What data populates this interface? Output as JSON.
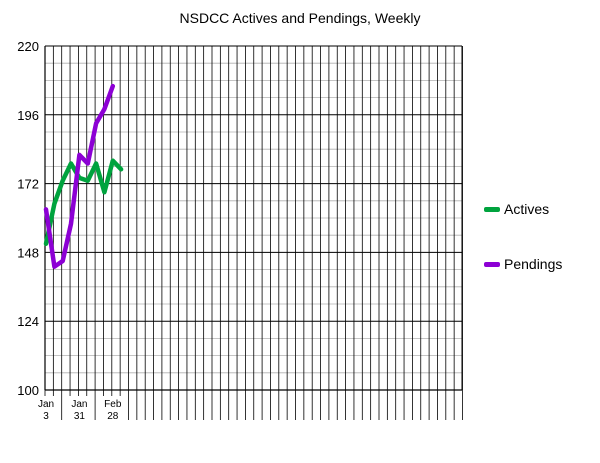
{
  "chart_data": {
    "type": "line",
    "title": "NSDCC Actives and Pendings, Weekly",
    "xlabel": "",
    "ylabel": "",
    "ylim": [
      100,
      220
    ],
    "y_ticks": [
      100,
      124,
      148,
      172,
      196,
      220
    ],
    "grid": true,
    "legend_position": "right",
    "x_tick_labels": [
      {
        "index": 0,
        "line1": "Jan",
        "line2": "3"
      },
      {
        "index": 4,
        "line1": "Jan",
        "line2": "31"
      },
      {
        "index": 8,
        "line1": "Feb",
        "line2": "28"
      }
    ],
    "x_slots": 52,
    "series": [
      {
        "name": "Actives",
        "color": "#00a33e",
        "values": [
          151,
          165,
          173,
          179,
          174,
          173,
          179,
          169,
          180,
          177
        ]
      },
      {
        "name": "Pendings",
        "color": "#8c00d4",
        "values": [
          163,
          143,
          145,
          158,
          182,
          179,
          193,
          198,
          206
        ]
      }
    ]
  }
}
